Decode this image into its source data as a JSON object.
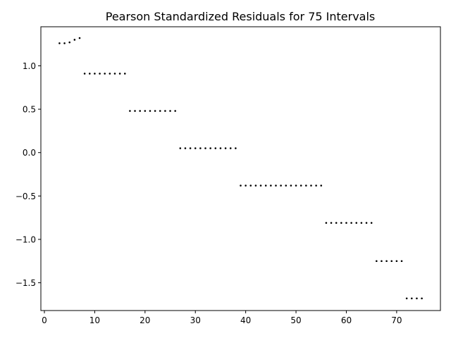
{
  "chart_data": {
    "type": "scatter",
    "title": "Pearson Standardized Residuals for 75 Intervals",
    "xlabel": "",
    "ylabel": "",
    "xlim": [
      -0.7,
      78.7
    ],
    "ylim": [
      -1.82,
      1.45
    ],
    "x_ticks": [
      0,
      10,
      20,
      30,
      40,
      50,
      60,
      70
    ],
    "y_ticks": [
      -1.5,
      -1.0,
      -0.5,
      0.0,
      0.5,
      1.0
    ],
    "x_tick_labels": [
      "0",
      "10",
      "20",
      "30",
      "40",
      "50",
      "60",
      "70"
    ],
    "y_tick_labels": [
      "−1.5",
      "−1.0",
      "−0.5",
      "0.0",
      "0.5",
      "1.0"
    ],
    "grid": false,
    "marker_color": "#000000",
    "points": [
      {
        "x": 3,
        "y": 1.26
      },
      {
        "x": 4,
        "y": 1.26
      },
      {
        "x": 5,
        "y": 1.27
      },
      {
        "x": 6,
        "y": 1.3
      },
      {
        "x": 7,
        "y": 1.32
      },
      {
        "x": 8,
        "y": 0.91
      },
      {
        "x": 9,
        "y": 0.91
      },
      {
        "x": 10,
        "y": 0.91
      },
      {
        "x": 11,
        "y": 0.91
      },
      {
        "x": 12,
        "y": 0.91
      },
      {
        "x": 13,
        "y": 0.91
      },
      {
        "x": 14,
        "y": 0.91
      },
      {
        "x": 15,
        "y": 0.91
      },
      {
        "x": 16,
        "y": 0.91
      },
      {
        "x": 17,
        "y": 0.48
      },
      {
        "x": 18,
        "y": 0.48
      },
      {
        "x": 19,
        "y": 0.48
      },
      {
        "x": 20,
        "y": 0.48
      },
      {
        "x": 21,
        "y": 0.48
      },
      {
        "x": 22,
        "y": 0.48
      },
      {
        "x": 23,
        "y": 0.48
      },
      {
        "x": 24,
        "y": 0.48
      },
      {
        "x": 25,
        "y": 0.48
      },
      {
        "x": 26,
        "y": 0.48
      },
      {
        "x": 27,
        "y": 0.05
      },
      {
        "x": 28,
        "y": 0.05
      },
      {
        "x": 29,
        "y": 0.05
      },
      {
        "x": 30,
        "y": 0.05
      },
      {
        "x": 31,
        "y": 0.05
      },
      {
        "x": 32,
        "y": 0.05
      },
      {
        "x": 33,
        "y": 0.05
      },
      {
        "x": 34,
        "y": 0.05
      },
      {
        "x": 35,
        "y": 0.05
      },
      {
        "x": 36,
        "y": 0.05
      },
      {
        "x": 37,
        "y": 0.05
      },
      {
        "x": 38,
        "y": 0.05
      },
      {
        "x": 39,
        "y": -0.38
      },
      {
        "x": 40,
        "y": -0.38
      },
      {
        "x": 41,
        "y": -0.38
      },
      {
        "x": 42,
        "y": -0.38
      },
      {
        "x": 43,
        "y": -0.38
      },
      {
        "x": 44,
        "y": -0.38
      },
      {
        "x": 45,
        "y": -0.38
      },
      {
        "x": 46,
        "y": -0.38
      },
      {
        "x": 47,
        "y": -0.38
      },
      {
        "x": 48,
        "y": -0.38
      },
      {
        "x": 49,
        "y": -0.38
      },
      {
        "x": 50,
        "y": -0.38
      },
      {
        "x": 51,
        "y": -0.38
      },
      {
        "x": 52,
        "y": -0.38
      },
      {
        "x": 53,
        "y": -0.38
      },
      {
        "x": 54,
        "y": -0.38
      },
      {
        "x": 55,
        "y": -0.38
      },
      {
        "x": 56,
        "y": -0.81
      },
      {
        "x": 57,
        "y": -0.81
      },
      {
        "x": 58,
        "y": -0.81
      },
      {
        "x": 59,
        "y": -0.81
      },
      {
        "x": 60,
        "y": -0.81
      },
      {
        "x": 61,
        "y": -0.81
      },
      {
        "x": 62,
        "y": -0.81
      },
      {
        "x": 63,
        "y": -0.81
      },
      {
        "x": 64,
        "y": -0.81
      },
      {
        "x": 65,
        "y": -0.81
      },
      {
        "x": 66,
        "y": -1.25
      },
      {
        "x": 67,
        "y": -1.25
      },
      {
        "x": 68,
        "y": -1.25
      },
      {
        "x": 69,
        "y": -1.25
      },
      {
        "x": 70,
        "y": -1.25
      },
      {
        "x": 71,
        "y": -1.25
      },
      {
        "x": 72,
        "y": -1.68
      },
      {
        "x": 73,
        "y": -1.68
      },
      {
        "x": 74,
        "y": -1.68
      },
      {
        "x": 75,
        "y": -1.68
      }
    ]
  }
}
